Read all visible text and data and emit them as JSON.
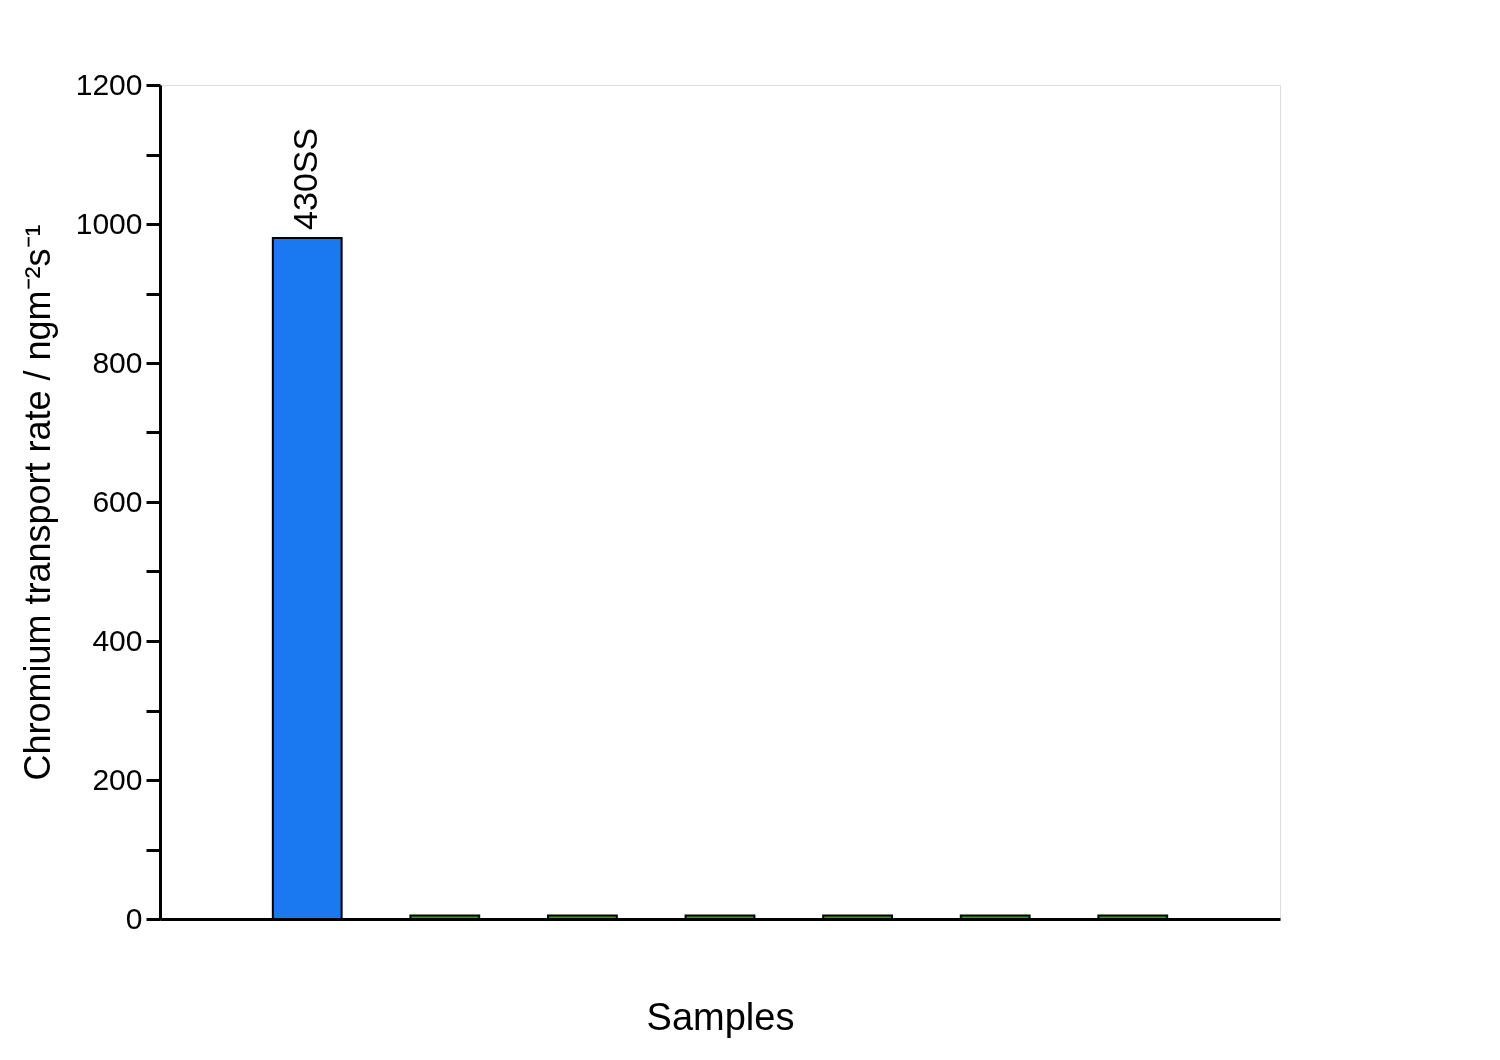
{
  "chart_data": {
    "type": "bar",
    "xlabel": "Samples",
    "ylabel": "Chromium transport rate / ngm⁻²s⁻¹",
    "categories": [
      "430SS",
      null,
      null,
      null,
      null,
      null,
      null
    ],
    "values": [
      980,
      5,
      5,
      5,
      5,
      5,
      5
    ],
    "colors": [
      "#1a78f0",
      "#1fa81f",
      "#1fa81f",
      "#1fa81f",
      "#1fa81f",
      "#1fa81f",
      "#1fa81f"
    ],
    "ylim": [
      0,
      1200
    ],
    "yticks": [
      0,
      {
        "value": 100,
        "label": null
      },
      200,
      {
        "value": 300,
        "label": null
      },
      400,
      {
        "value": 500,
        "label": null
      },
      600,
      {
        "value": 700,
        "label": null
      },
      800,
      {
        "value": 900,
        "label": null
      },
      1000,
      {
        "value": 1100,
        "label": null
      },
      1200
    ],
    "grid": false
  }
}
